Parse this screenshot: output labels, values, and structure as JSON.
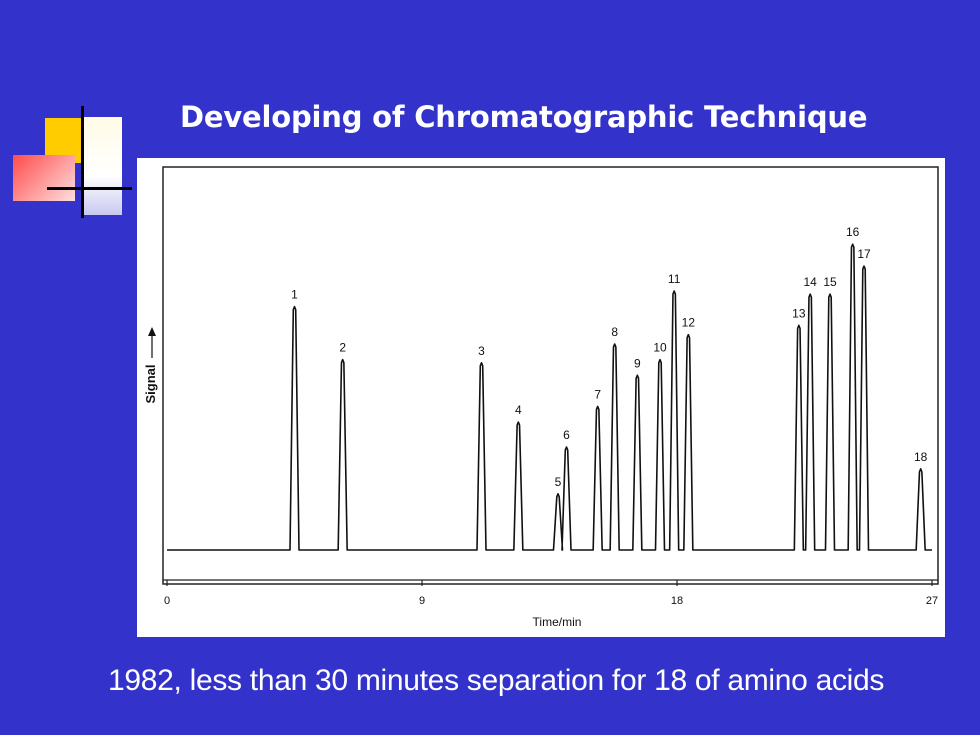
{
  "slide": {
    "title": "Developing of Chromatographic Technique",
    "caption": "1982, less than 30 minutes separation for 18 of amino acids",
    "background_color": "#3333cc",
    "text_color": "#ffffff"
  },
  "chart_data": {
    "type": "line",
    "title": "",
    "xlabel": "Time/min",
    "ylabel": "Signal",
    "xlim": [
      0,
      27
    ],
    "ylim": [
      0,
      1
    ],
    "x_ticks": [
      0,
      9,
      18,
      27
    ],
    "grid": false,
    "series": [
      {
        "peaks": [
          {
            "label": "1",
            "time": 4.5,
            "height": 0.78
          },
          {
            "label": "2",
            "time": 6.2,
            "height": 0.61
          },
          {
            "label": "3",
            "time": 11.1,
            "height": 0.6
          },
          {
            "label": "4",
            "time": 12.4,
            "height": 0.41
          },
          {
            "label": "5",
            "time": 13.8,
            "height": 0.18
          },
          {
            "label": "6",
            "time": 14.1,
            "height": 0.33
          },
          {
            "label": "7",
            "time": 15.2,
            "height": 0.46
          },
          {
            "label": "8",
            "time": 15.8,
            "height": 0.66
          },
          {
            "label": "9",
            "time": 16.6,
            "height": 0.56
          },
          {
            "label": "10",
            "time": 17.4,
            "height": 0.61
          },
          {
            "label": "11",
            "time": 17.9,
            "height": 0.83
          },
          {
            "label": "12",
            "time": 18.4,
            "height": 0.69
          },
          {
            "label": "13",
            "time": 22.3,
            "height": 0.72
          },
          {
            "label": "14",
            "time": 22.7,
            "height": 0.82
          },
          {
            "label": "15",
            "time": 23.4,
            "height": 0.82
          },
          {
            "label": "16",
            "time": 24.2,
            "height": 0.98
          },
          {
            "label": "17",
            "time": 24.6,
            "height": 0.91
          },
          {
            "label": "18",
            "time": 26.6,
            "height": 0.26
          }
        ]
      }
    ]
  }
}
